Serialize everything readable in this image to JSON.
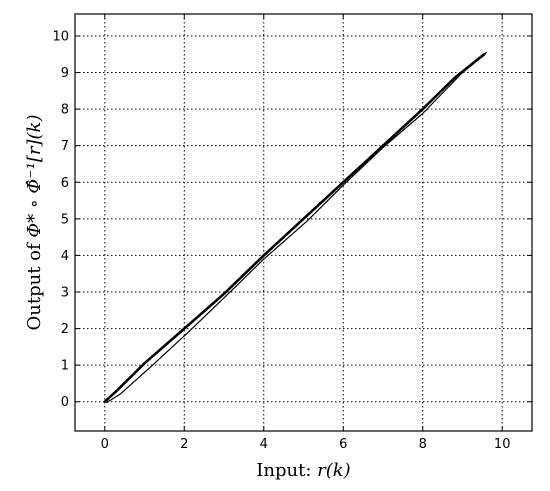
{
  "chart_data": {
    "type": "line",
    "title": "",
    "xlabel_prefix": "Input: ",
    "xlabel_math": "r(k)",
    "ylabel_prefix": "Output of ",
    "ylabel_math": "Φ* ∘ Φ̂⁻¹[r](k)",
    "xlim": [
      -0.75,
      10.75
    ],
    "ylim": [
      -0.8,
      10.6
    ],
    "xticks": [
      0,
      2,
      4,
      6,
      8,
      10
    ],
    "yticks": [
      0,
      1,
      2,
      3,
      4,
      5,
      6,
      7,
      8,
      9,
      10
    ],
    "xtick_labels": [
      "0",
      "2",
      "4",
      "6",
      "8",
      "10"
    ],
    "ytick_labels": [
      "0",
      "1",
      "2",
      "3",
      "4",
      "5",
      "6",
      "7",
      "8",
      "9",
      "10"
    ],
    "grid": true,
    "legend": "none",
    "series": [
      {
        "style": "thick",
        "x": [
          0.0,
          0.3,
          1.0,
          2.0,
          3.0,
          4.0,
          5.0,
          6.0,
          7.0,
          8.0,
          8.8,
          9.55
        ],
        "y": [
          0.0,
          0.3,
          1.05,
          2.0,
          2.95,
          4.0,
          5.0,
          6.0,
          7.0,
          8.0,
          8.85,
          9.5
        ]
      },
      {
        "style": "thin",
        "x": [
          0.05,
          0.4,
          1.2,
          2.1,
          3.2,
          4.0,
          5.1,
          6.0,
          7.0,
          8.0,
          9.0,
          9.6
        ],
        "y": [
          -0.02,
          0.22,
          1.0,
          1.9,
          3.05,
          3.9,
          4.95,
          5.92,
          6.95,
          7.88,
          9.0,
          9.55
        ]
      }
    ]
  }
}
